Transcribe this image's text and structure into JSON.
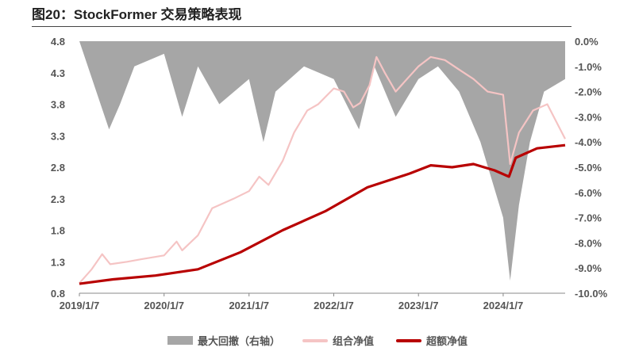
{
  "title": "图20：StockFormer 交易策略表现",
  "colors": {
    "drawdown": "#a6a6a6",
    "portfolio": "#f5c4c4",
    "excess": "#b80000"
  },
  "legend": [
    {
      "label": "最大回撤（右轴）",
      "kind": "area",
      "color": "#a6a6a6"
    },
    {
      "label": "组合净值",
      "kind": "line",
      "color": "#f5c4c4"
    },
    {
      "label": "超额净值",
      "kind": "line",
      "color": "#b80000"
    }
  ],
  "chart_data": {
    "type": "line",
    "x_ticks": [
      "2019/1/7",
      "2020/1/7",
      "2021/1/7",
      "2022/1/7",
      "2023/1/7",
      "2024/1/7"
    ],
    "x_range": [
      "2019-01-07",
      "2024-09-30"
    ],
    "ylim": [
      0.8,
      4.8
    ],
    "y_ticks": [
      "4.8",
      "4.3",
      "3.8",
      "3.3",
      "2.8",
      "2.3",
      "1.8",
      "1.3",
      "0.8"
    ],
    "y2lim": [
      -10.0,
      0.0
    ],
    "y2_ticks": [
      "0.0%",
      "-1.0%",
      "-2.0%",
      "-3.0%",
      "-4.0%",
      "-5.0%",
      "-6.0%",
      "-7.0%",
      "-8.0%",
      "-9.0%",
      "-10.0%"
    ],
    "series": [
      {
        "name": "组合净值",
        "axis": "left",
        "points": [
          [
            "2019-01-07",
            0.96
          ],
          [
            "2019-03-01",
            1.18
          ],
          [
            "2019-04-15",
            1.42
          ],
          [
            "2019-05-20",
            1.26
          ],
          [
            "2019-08-01",
            1.3
          ],
          [
            "2019-10-01",
            1.34
          ],
          [
            "2020-01-07",
            1.4
          ],
          [
            "2020-03-01",
            1.62
          ],
          [
            "2020-03-25",
            1.48
          ],
          [
            "2020-06-01",
            1.72
          ],
          [
            "2020-08-01",
            2.15
          ],
          [
            "2020-11-01",
            2.3
          ],
          [
            "2021-01-07",
            2.42
          ],
          [
            "2021-02-20",
            2.65
          ],
          [
            "2021-04-01",
            2.52
          ],
          [
            "2021-06-01",
            2.9
          ],
          [
            "2021-07-20",
            3.35
          ],
          [
            "2021-09-15",
            3.7
          ],
          [
            "2021-11-01",
            3.8
          ],
          [
            "2022-01-07",
            4.05
          ],
          [
            "2022-02-20",
            4.0
          ],
          [
            "2022-04-01",
            3.75
          ],
          [
            "2022-05-01",
            3.82
          ],
          [
            "2022-06-10",
            4.1
          ],
          [
            "2022-07-10",
            4.55
          ],
          [
            "2022-08-15",
            4.3
          ],
          [
            "2022-10-01",
            4.0
          ],
          [
            "2022-12-01",
            4.25
          ],
          [
            "2023-01-07",
            4.4
          ],
          [
            "2023-03-01",
            4.55
          ],
          [
            "2023-05-01",
            4.5
          ],
          [
            "2023-07-01",
            4.35
          ],
          [
            "2023-09-01",
            4.2
          ],
          [
            "2023-11-01",
            4.0
          ],
          [
            "2024-01-07",
            3.95
          ],
          [
            "2024-02-06",
            2.85
          ],
          [
            "2024-03-15",
            3.35
          ],
          [
            "2024-05-15",
            3.7
          ],
          [
            "2024-07-15",
            3.8
          ],
          [
            "2024-09-30",
            3.25
          ]
        ]
      },
      {
        "name": "超额净值",
        "axis": "left",
        "points": [
          [
            "2019-01-07",
            0.95
          ],
          [
            "2019-06-01",
            1.02
          ],
          [
            "2019-12-01",
            1.08
          ],
          [
            "2020-06-01",
            1.18
          ],
          [
            "2020-12-01",
            1.45
          ],
          [
            "2021-06-01",
            1.8
          ],
          [
            "2021-12-01",
            2.1
          ],
          [
            "2022-06-01",
            2.48
          ],
          [
            "2022-12-01",
            2.7
          ],
          [
            "2023-03-01",
            2.83
          ],
          [
            "2023-06-01",
            2.8
          ],
          [
            "2023-09-01",
            2.85
          ],
          [
            "2023-12-01",
            2.75
          ],
          [
            "2024-02-01",
            2.65
          ],
          [
            "2024-03-01",
            2.95
          ],
          [
            "2024-06-01",
            3.1
          ],
          [
            "2024-09-30",
            3.15
          ]
        ]
      },
      {
        "name": "最大回撤（右轴）",
        "axis": "right",
        "type": "area",
        "points": [
          [
            "2019-01-07",
            0.0
          ],
          [
            "2019-05-15",
            -3.5
          ],
          [
            "2019-07-01",
            -2.5
          ],
          [
            "2019-09-01",
            -1.0
          ],
          [
            "2020-01-07",
            -0.5
          ],
          [
            "2020-03-25",
            -3.0
          ],
          [
            "2020-06-01",
            -1.0
          ],
          [
            "2020-09-01",
            -2.5
          ],
          [
            "2021-01-07",
            -1.5
          ],
          [
            "2021-03-10",
            -4.0
          ],
          [
            "2021-05-01",
            -2.0
          ],
          [
            "2021-09-01",
            -1.0
          ],
          [
            "2022-01-07",
            -1.5
          ],
          [
            "2022-04-26",
            -3.5
          ],
          [
            "2022-07-01",
            -1.0
          ],
          [
            "2022-10-01",
            -3.0
          ],
          [
            "2023-01-07",
            -1.5
          ],
          [
            "2023-04-01",
            -1.0
          ],
          [
            "2023-07-01",
            -2.0
          ],
          [
            "2023-10-01",
            -4.0
          ],
          [
            "2024-01-07",
            -7.0
          ],
          [
            "2024-02-06",
            -9.5
          ],
          [
            "2024-03-15",
            -6.5
          ],
          [
            "2024-05-01",
            -4.0
          ],
          [
            "2024-07-01",
            -2.0
          ],
          [
            "2024-09-30",
            -1.5
          ]
        ]
      }
    ]
  }
}
